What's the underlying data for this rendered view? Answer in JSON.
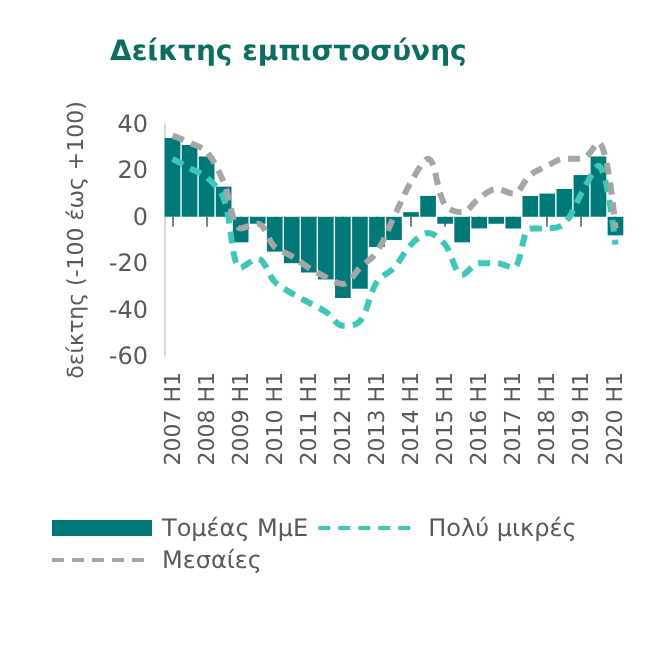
{
  "chart_data": {
    "type": "bar",
    "title": "Δείκτης εμπιστοσύνης",
    "ylabel": "δείκτης (-100 έως +100)",
    "categories": [
      "2007 H1",
      null,
      "2008 H1",
      null,
      "2009 H1",
      null,
      "2010 H1",
      null,
      "2011 H1",
      null,
      "2012 H1",
      null,
      "2013 H1",
      null,
      "2014 H1",
      null,
      "2015 H1",
      null,
      "2016 H1",
      null,
      "2017 H1",
      null,
      "2018 H1",
      null,
      "2019 H1",
      null,
      "2020 H1"
    ],
    "series": [
      {
        "name": "Τομέας ΜμΕ",
        "color": "#007a78",
        "values": [
          34,
          31,
          26,
          13,
          -11,
          -3,
          -15,
          -20,
          -24,
          -27,
          -35,
          -31,
          -13,
          -10,
          2,
          9,
          -3,
          -11,
          -5,
          -3,
          -5,
          9,
          10,
          12,
          18,
          26,
          -8
        ]
      },
      {
        "name": "Πολύ μικρές",
        "type": "line",
        "color": "#3cc8b8",
        "line_style": "dashed",
        "values": [
          25,
          21,
          17,
          8,
          -22,
          -18,
          -28,
          -33,
          -37,
          -41,
          -47,
          -45,
          -28,
          -22,
          -12,
          -7,
          -12,
          -25,
          -20,
          -20,
          -22,
          -5,
          -5,
          -3,
          10,
          22,
          -12
        ]
      },
      {
        "name": "Μεσαίες",
        "type": "line",
        "color": "#a6a6a6",
        "line_style": "dashed",
        "values": [
          35,
          32,
          28,
          15,
          -5,
          -3,
          -13,
          -17,
          -22,
          -26,
          -29,
          -22,
          -15,
          0,
          15,
          25,
          5,
          2,
          8,
          12,
          10,
          18,
          22,
          25,
          25,
          32,
          -5
        ]
      }
    ],
    "ylim": [
      -60,
      40
    ],
    "yticks": [
      -60,
      -40,
      -20,
      0,
      20,
      40
    ],
    "grid": false,
    "legend": "bottom",
    "marker": "none"
  }
}
